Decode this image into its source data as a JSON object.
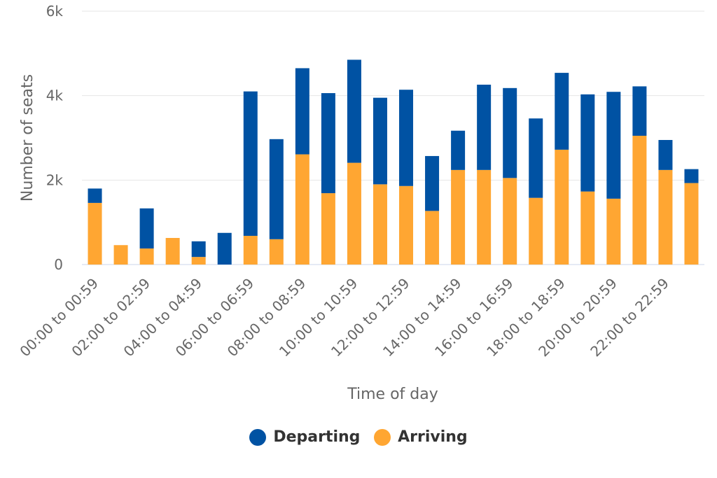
{
  "chart_data": {
    "type": "bar",
    "stacked": true,
    "xlabel": "Time of day",
    "ylabel": "Number of seats",
    "ylim": [
      0,
      6000
    ],
    "y_ticks": [
      {
        "value": 0,
        "label": "0"
      },
      {
        "value": 2000,
        "label": "2k"
      },
      {
        "value": 4000,
        "label": "4k"
      },
      {
        "value": 6000,
        "label": "6k"
      }
    ],
    "grid": true,
    "legend_position": "bottom",
    "categories": [
      "00:00 to 00:59",
      "01:00 to 01:59",
      "02:00 to 02:59",
      "03:00 to 03:59",
      "04:00 to 04:59",
      "05:00 to 05:59",
      "06:00 to 06:59",
      "07:00 to 07:59",
      "08:00 to 08:59",
      "09:00 to 09:59",
      "10:00 to 10:59",
      "11:00 to 11:59",
      "12:00 to 12:59",
      "13:00 to 13:59",
      "14:00 to 14:59",
      "15:00 to 15:59",
      "16:00 to 16:59",
      "17:00 to 17:59",
      "18:00 to 18:59",
      "19:00 to 19:59",
      "20:00 to 20:59",
      "21:00 to 21:59",
      "22:00 to 22:59",
      "23:00 to 23:59"
    ],
    "visible_category_labels": [
      "00:00 to 00:59",
      "02:00 to 02:59",
      "04:00 to 04:59",
      "06:00 to 06:59",
      "08:00 to 08:59",
      "10:00 to 10:59",
      "12:00 to 12:59",
      "14:00 to 14:59",
      "16:00 to 16:59",
      "18:00 to 18:59",
      "20:00 to 20:59",
      "22:00 to 22:59"
    ],
    "series": [
      {
        "name": "Departing",
        "color": "#0052a3",
        "values": [
          340,
          0,
          950,
          0,
          370,
          750,
          3420,
          2370,
          2040,
          2370,
          2440,
          2050,
          2280,
          1300,
          930,
          2020,
          2130,
          1880,
          1820,
          2300,
          2530,
          1170,
          710,
          330
        ]
      },
      {
        "name": "Arriving",
        "color": "#ffa632",
        "values": [
          1460,
          460,
          380,
          630,
          180,
          0,
          680,
          600,
          2610,
          1690,
          2410,
          1900,
          1860,
          1270,
          2240,
          2240,
          2050,
          1580,
          2720,
          1730,
          1560,
          3050,
          2240,
          1930
        ]
      }
    ]
  }
}
